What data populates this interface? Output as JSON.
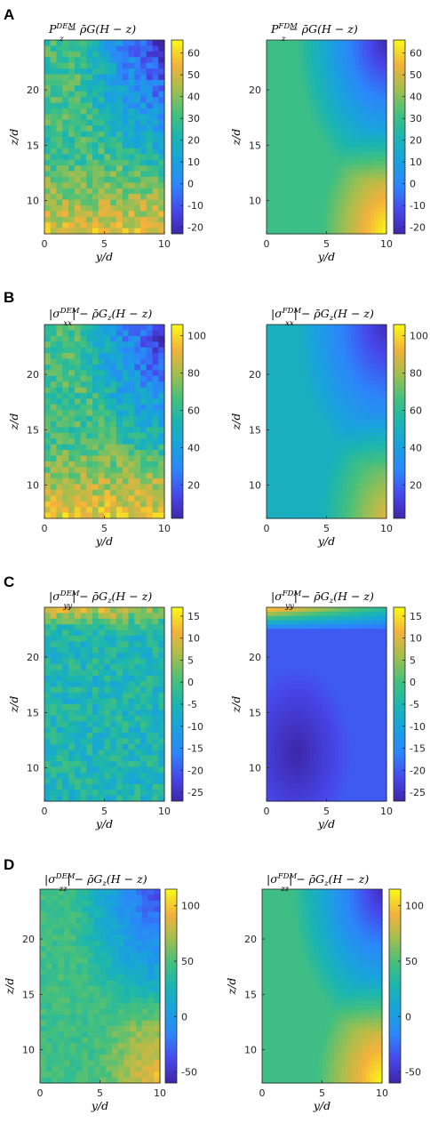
{
  "figure": {
    "panels": [
      {
        "letter": "A",
        "colorbar_ticks": [
          "60",
          "50",
          "40",
          "30",
          "20",
          "10",
          "0",
          "-10",
          "-20"
        ],
        "charts": [
          {
            "title_main": "P",
            "title_sup": "DEM",
            "title_rest": " − ρ̄G",
            "title_sub": "z",
            "title_end": "(H − z)"
          },
          {
            "title_main": "P",
            "title_sup": "FDM",
            "title_rest": " − ρ̄G",
            "title_sub": "z",
            "title_end": "(H − z)"
          }
        ]
      },
      {
        "letter": "B",
        "colorbar_ticks": [
          "100",
          "80",
          "60",
          "40",
          "20"
        ],
        "charts": [
          {
            "title_main": "|σ",
            "title_sup": "DEM",
            "title_sub": "xx",
            "title_rest": "| − ρ̄G",
            "title_sub2": "z",
            "title_end": "(H − z)"
          },
          {
            "title_main": "|σ",
            "title_sup": "FDM",
            "title_sub": "xx",
            "title_rest": "| − ρ̄G",
            "title_sub2": "z",
            "title_end": "(H − z)"
          }
        ]
      },
      {
        "letter": "C",
        "colorbar_ticks": [
          "15",
          "10",
          "5",
          "0",
          "-5",
          "-10",
          "-15",
          "-20",
          "-25"
        ],
        "charts": [
          {
            "title_main": "|σ",
            "title_sup": "DEM",
            "title_sub": "yy",
            "title_rest": "| − ρ̄G",
            "title_sub2": "z",
            "title_end": "(H − z)"
          },
          {
            "title_main": "|σ",
            "title_sup": "FDM",
            "title_sub": "yy",
            "title_rest": "| − ρ̄G",
            "title_sub2": "z",
            "title_end": "(H − z)"
          }
        ]
      },
      {
        "letter": "D",
        "colorbar_ticks": [
          "100",
          "50",
          "0",
          "-50"
        ],
        "charts": [
          {
            "title_main": "|σ",
            "title_sup": "DEM",
            "title_sub": "zz",
            "title_rest": "| − ρ̄G",
            "title_sub2": "z",
            "title_end": "(H − z)"
          },
          {
            "title_main": "|σ",
            "title_sup": "FDM",
            "title_sub": "zz",
            "title_rest": "| − ρ̄G",
            "title_sub2": "z",
            "title_end": "(H − z)"
          }
        ]
      }
    ],
    "x_ticks": [
      "0",
      "5",
      "10"
    ],
    "y_ticks": [
      "20",
      "15",
      "10"
    ],
    "xlabel": "y/d",
    "ylabel": "z/d"
  },
  "chart_data": [
    {
      "panel": "A",
      "chart": "DEM",
      "type": "heatmap",
      "xlim": [
        0,
        10
      ],
      "ylim": [
        7,
        24.5
      ],
      "clim": [
        -23,
        66
      ],
      "colormap": "parula",
      "field": {
        "base": 30,
        "top_right_low": -22,
        "bottom_high": 58,
        "noise": "high"
      }
    },
    {
      "panel": "A",
      "chart": "FDM",
      "type": "heatmap",
      "xlim": [
        0,
        10
      ],
      "ylim": [
        7,
        24.5
      ],
      "clim": [
        -23,
        66
      ],
      "colormap": "parula",
      "field": {
        "base": 30,
        "top_right_low": -22,
        "bottom_right_high": 66,
        "noise": "none"
      }
    },
    {
      "panel": "B",
      "chart": "DEM",
      "type": "heatmap",
      "xlim": [
        0,
        10
      ],
      "ylim": [
        7,
        24.5
      ],
      "clim": [
        2,
        106
      ],
      "colormap": "parula",
      "field": {
        "base": 65,
        "top_right_low": 5,
        "bottom_high": 100,
        "noise": "high"
      }
    },
    {
      "panel": "B",
      "chart": "FDM",
      "type": "heatmap",
      "xlim": [
        0,
        10
      ],
      "ylim": [
        7,
        24.5
      ],
      "clim": [
        2,
        106
      ],
      "colormap": "parula",
      "field": {
        "base": 50,
        "top_right_low": 5,
        "bottom_right_high": 90,
        "noise": "none"
      }
    },
    {
      "panel": "C",
      "chart": "DEM",
      "type": "heatmap",
      "xlim": [
        0,
        10
      ],
      "ylim": [
        7,
        24.5
      ],
      "clim": [
        -27,
        17
      ],
      "colormap": "parula",
      "field": {
        "base": -5,
        "top_edge_high": 15,
        "noise": "high"
      }
    },
    {
      "panel": "C",
      "chart": "FDM",
      "type": "heatmap",
      "xlim": [
        0,
        10
      ],
      "ylim": [
        7,
        24.5
      ],
      "clim": [
        -27,
        17
      ],
      "colormap": "parula",
      "field": {
        "base": -20,
        "top_edge_high": 16,
        "bottom_left_low": -27,
        "noise": "none"
      }
    },
    {
      "panel": "D",
      "chart": "DEM",
      "type": "heatmap",
      "xlim": [
        0,
        10
      ],
      "ylim": [
        7,
        24.5
      ],
      "clim": [
        -60,
        115
      ],
      "colormap": "parula",
      "field": {
        "base": 45,
        "top_right_low": -40,
        "bottom_right_high": 95,
        "noise": "medium"
      }
    },
    {
      "panel": "D",
      "chart": "FDM",
      "type": "heatmap",
      "xlim": [
        0,
        10
      ],
      "ylim": [
        7,
        24.5
      ],
      "clim": [
        -60,
        115
      ],
      "colormap": "parula",
      "field": {
        "base": 45,
        "top_right_low": -55,
        "bottom_right_high": 115,
        "noise": "none"
      }
    }
  ]
}
